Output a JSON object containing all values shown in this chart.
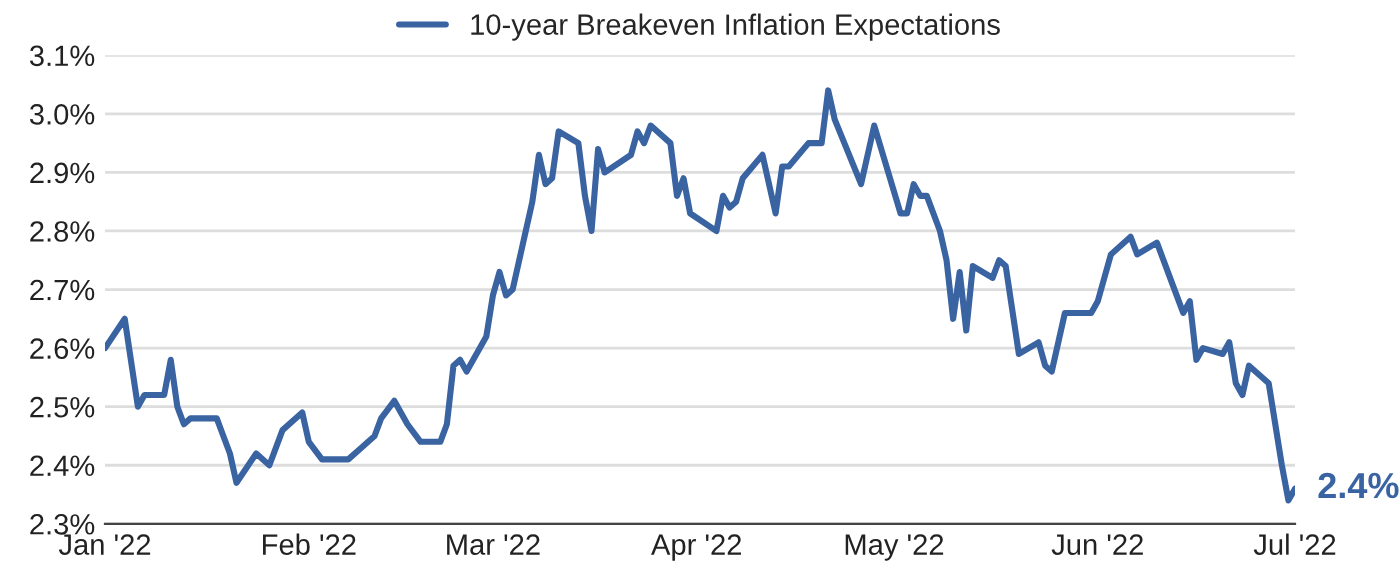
{
  "chart_data": {
    "type": "line",
    "x": [
      "2022-01-01",
      "2022-01-04",
      "2022-01-06",
      "2022-01-07",
      "2022-01-10",
      "2022-01-11",
      "2022-01-12",
      "2022-01-13",
      "2022-01-14",
      "2022-01-18",
      "2022-01-19",
      "2022-01-20",
      "2022-01-21",
      "2022-01-24",
      "2022-01-26",
      "2022-01-28",
      "2022-01-31",
      "2022-02-01",
      "2022-02-03",
      "2022-02-07",
      "2022-02-09",
      "2022-02-11",
      "2022-02-12",
      "2022-02-14",
      "2022-02-16",
      "2022-02-18",
      "2022-02-21",
      "2022-02-22",
      "2022-02-23",
      "2022-02-24",
      "2022-02-25",
      "2022-02-28",
      "2022-03-01",
      "2022-03-02",
      "2022-03-03",
      "2022-03-04",
      "2022-03-07",
      "2022-03-08",
      "2022-03-09",
      "2022-03-10",
      "2022-03-11",
      "2022-03-14",
      "2022-03-15",
      "2022-03-16",
      "2022-03-17",
      "2022-03-18",
      "2022-03-22",
      "2022-03-23",
      "2022-03-24",
      "2022-03-25",
      "2022-03-28",
      "2022-03-29",
      "2022-03-30",
      "2022-03-31",
      "2022-04-04",
      "2022-04-05",
      "2022-04-06",
      "2022-04-07",
      "2022-04-08",
      "2022-04-11",
      "2022-04-13",
      "2022-04-14",
      "2022-04-15",
      "2022-04-18",
      "2022-04-20",
      "2022-04-21",
      "2022-04-22",
      "2022-04-26",
      "2022-04-28",
      "2022-05-02",
      "2022-05-03",
      "2022-05-04",
      "2022-05-05",
      "2022-05-06",
      "2022-05-08",
      "2022-05-09",
      "2022-05-10",
      "2022-05-11",
      "2022-05-12",
      "2022-05-13",
      "2022-05-16",
      "2022-05-17",
      "2022-05-18",
      "2022-05-20",
      "2022-05-23",
      "2022-05-24",
      "2022-05-25",
      "2022-05-27",
      "2022-05-31",
      "2022-06-01",
      "2022-06-03",
      "2022-06-06",
      "2022-06-07",
      "2022-06-10",
      "2022-06-13",
      "2022-06-14",
      "2022-06-15",
      "2022-06-16",
      "2022-06-17",
      "2022-06-20",
      "2022-06-21",
      "2022-06-22",
      "2022-06-23",
      "2022-06-24",
      "2022-06-27",
      "2022-06-29",
      "2022-06-30",
      "2022-07-01"
    ],
    "series": [
      {
        "name": "10-year Breakeven Inflation Expectations",
        "color": "#3a63a2",
        "values": [
          2.6,
          2.65,
          2.5,
          2.52,
          2.52,
          2.58,
          2.5,
          2.47,
          2.48,
          2.48,
          2.45,
          2.42,
          2.37,
          2.42,
          2.4,
          2.46,
          2.49,
          2.44,
          2.41,
          2.41,
          2.43,
          2.45,
          2.48,
          2.51,
          2.47,
          2.44,
          2.44,
          2.47,
          2.57,
          2.58,
          2.56,
          2.62,
          2.69,
          2.73,
          2.69,
          2.7,
          2.85,
          2.93,
          2.88,
          2.89,
          2.97,
          2.95,
          2.86,
          2.8,
          2.94,
          2.9,
          2.93,
          2.97,
          2.95,
          2.98,
          2.95,
          2.86,
          2.89,
          2.83,
          2.8,
          2.86,
          2.84,
          2.85,
          2.89,
          2.93,
          2.83,
          2.91,
          2.91,
          2.95,
          2.95,
          3.04,
          2.99,
          2.88,
          2.98,
          2.83,
          2.83,
          2.88,
          2.86,
          2.86,
          2.8,
          2.75,
          2.65,
          2.73,
          2.63,
          2.74,
          2.72,
          2.75,
          2.74,
          2.59,
          2.61,
          2.57,
          2.56,
          2.66,
          2.66,
          2.68,
          2.76,
          2.79,
          2.76,
          2.78,
          2.69,
          2.66,
          2.68,
          2.58,
          2.6,
          2.59,
          2.61,
          2.54,
          2.52,
          2.57,
          2.54,
          2.4,
          2.34,
          2.36
        ]
      }
    ],
    "xlim": [
      "2022-01-01",
      "2022-07-01"
    ],
    "xticks": [
      {
        "value": "2022-01-01",
        "label": "Jan '22"
      },
      {
        "value": "2022-02-01",
        "label": "Feb '22"
      },
      {
        "value": "2022-03-01",
        "label": "Mar '22"
      },
      {
        "value": "2022-04-01",
        "label": "Apr '22"
      },
      {
        "value": "2022-05-01",
        "label": "May '22"
      },
      {
        "value": "2022-06-01",
        "label": "Jun '22"
      },
      {
        "value": "2022-07-01",
        "label": "Jul '22"
      }
    ],
    "ylim": [
      2.3,
      3.1
    ],
    "yticks": [
      {
        "value": 2.3,
        "label": "2.3%"
      },
      {
        "value": 2.4,
        "label": "2.4%"
      },
      {
        "value": 2.5,
        "label": "2.5%"
      },
      {
        "value": 2.6,
        "label": "2.6%"
      },
      {
        "value": 2.7,
        "label": "2.7%"
      },
      {
        "value": 2.8,
        "label": "2.8%"
      },
      {
        "value": 2.9,
        "label": "2.9%"
      },
      {
        "value": 3.0,
        "label": "3.0%"
      },
      {
        "value": 3.1,
        "label": "3.1%"
      }
    ],
    "annotations": [
      {
        "text": "2.4%",
        "x": "2022-07-01",
        "y": 2.36
      }
    ],
    "grid": "y",
    "legend": "top",
    "marker": "none",
    "line_style": "solid"
  }
}
